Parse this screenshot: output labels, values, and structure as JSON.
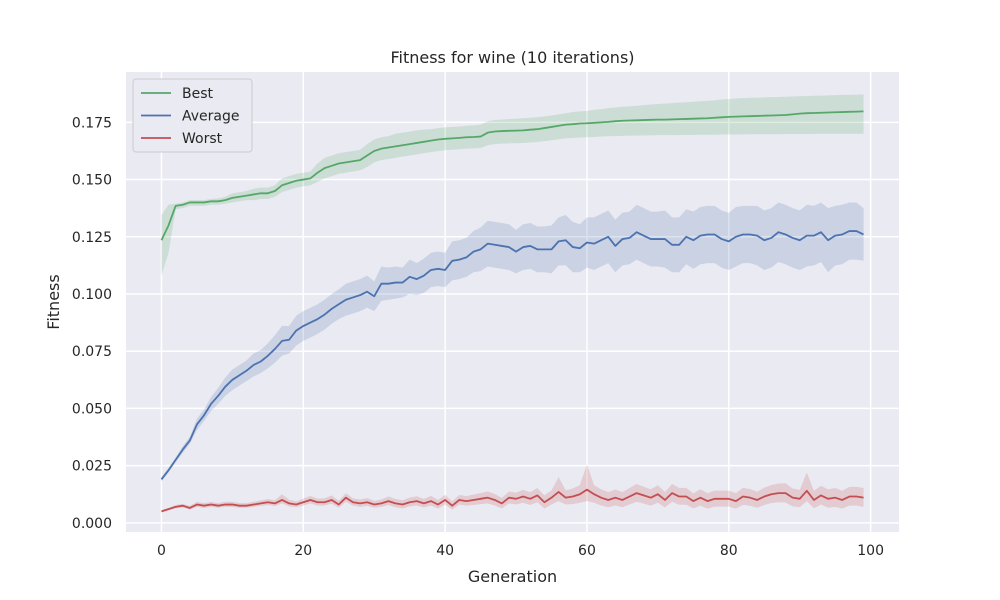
{
  "chart_data": {
    "type": "line",
    "title": "Fitness for wine (10 iterations)",
    "xlabel": "Generation",
    "ylabel": "Fitness",
    "xlim": [
      -5,
      104
    ],
    "ylim": [
      -0.004,
      0.197
    ],
    "xticks": [
      0,
      20,
      40,
      60,
      80,
      100
    ],
    "yticks": [
      0.0,
      0.025,
      0.05,
      0.075,
      0.1,
      0.125,
      0.15,
      0.175
    ],
    "ytick_labels": [
      "0.000",
      "0.025",
      "0.050",
      "0.075",
      "0.100",
      "0.125",
      "0.150",
      "0.175"
    ],
    "grid": true,
    "legend_position": "upper-left",
    "series": [
      {
        "name": "Best",
        "color": "#55a868",
        "values": [
          0.1235,
          0.13,
          0.1385,
          0.139,
          0.14,
          0.14,
          0.14,
          0.1405,
          0.1405,
          0.141,
          0.142,
          0.1425,
          0.143,
          0.1435,
          0.144,
          0.144,
          0.145,
          0.1475,
          0.1485,
          0.1495,
          0.15,
          0.1505,
          0.153,
          0.155,
          0.156,
          0.157,
          0.1575,
          0.158,
          0.1585,
          0.1605,
          0.1625,
          0.1635,
          0.164,
          0.1645,
          0.165,
          0.1655,
          0.166,
          0.1665,
          0.167,
          0.1675,
          0.1678,
          0.168,
          0.1682,
          0.1685,
          0.1686,
          0.1688,
          0.1705,
          0.171,
          0.1712,
          0.1713,
          0.1714,
          0.1715,
          0.1718,
          0.172,
          0.1725,
          0.173,
          0.1735,
          0.174,
          0.1742,
          0.1745,
          0.1746,
          0.1748,
          0.175,
          0.1752,
          0.1755,
          0.1757,
          0.1758,
          0.1759,
          0.176,
          0.1761,
          0.1762,
          0.1762,
          0.1763,
          0.1764,
          0.1765,
          0.1766,
          0.1767,
          0.1768,
          0.177,
          0.1772,
          0.1774,
          0.1775,
          0.1776,
          0.1777,
          0.1778,
          0.1779,
          0.178,
          0.1781,
          0.1782,
          0.1785,
          0.1788,
          0.179,
          0.1791,
          0.1792,
          0.1793,
          0.1794,
          0.1795,
          0.1796,
          0.1797,
          0.1798
        ],
        "lower": [
          0.108,
          0.118,
          0.137,
          0.1375,
          0.1385,
          0.1385,
          0.1385,
          0.139,
          0.139,
          0.1395,
          0.14,
          0.1405,
          0.141,
          0.141,
          0.1415,
          0.1415,
          0.1425,
          0.1445,
          0.1455,
          0.1465,
          0.147,
          0.1475,
          0.149,
          0.1505,
          0.1515,
          0.1525,
          0.153,
          0.1535,
          0.154,
          0.1555,
          0.1575,
          0.1585,
          0.159,
          0.1595,
          0.16,
          0.1605,
          0.161,
          0.1615,
          0.162,
          0.1625,
          0.1628,
          0.163,
          0.1632,
          0.1635,
          0.1636,
          0.1638,
          0.165,
          0.1655,
          0.1657,
          0.1658,
          0.1659,
          0.166,
          0.1662,
          0.1664,
          0.1668,
          0.1672,
          0.1676,
          0.168,
          0.1682,
          0.1684,
          0.1685,
          0.1686,
          0.1688,
          0.1689,
          0.169,
          0.1691,
          0.1692,
          0.1692,
          0.1693,
          0.1693,
          0.1694,
          0.1694,
          0.1694,
          0.1695,
          0.1695,
          0.1695,
          0.1696,
          0.1696,
          0.1696,
          0.1697,
          0.1697,
          0.1697,
          0.1697,
          0.1698,
          0.1698,
          0.1698,
          0.1698,
          0.1698,
          0.1699,
          0.1699,
          0.1699,
          0.1699,
          0.1699,
          0.17,
          0.17,
          0.17,
          0.17,
          0.17,
          0.17,
          0.17
        ],
        "upper": [
          0.1345,
          0.139,
          0.1395,
          0.14,
          0.141,
          0.141,
          0.141,
          0.1415,
          0.1418,
          0.1425,
          0.144,
          0.1445,
          0.145,
          0.146,
          0.1465,
          0.1465,
          0.1475,
          0.1505,
          0.1515,
          0.1525,
          0.153,
          0.1535,
          0.157,
          0.1595,
          0.1605,
          0.1615,
          0.162,
          0.1625,
          0.163,
          0.1655,
          0.1675,
          0.1685,
          0.169,
          0.17,
          0.1705,
          0.171,
          0.1715,
          0.1718,
          0.172,
          0.1725,
          0.1728,
          0.173,
          0.1732,
          0.1735,
          0.1737,
          0.174,
          0.1755,
          0.176,
          0.1762,
          0.1764,
          0.1766,
          0.1768,
          0.177,
          0.1772,
          0.1776,
          0.178,
          0.1785,
          0.179,
          0.1795,
          0.1798,
          0.18,
          0.1805,
          0.1808,
          0.1812,
          0.1815,
          0.1818,
          0.182,
          0.1822,
          0.1825,
          0.1828,
          0.183,
          0.1832,
          0.1834,
          0.1836,
          0.1838,
          0.184,
          0.1842,
          0.1844,
          0.1846,
          0.185,
          0.1852,
          0.1854,
          0.1856,
          0.1857,
          0.1858,
          0.1859,
          0.186,
          0.1861,
          0.1862,
          0.1863,
          0.1864,
          0.1865,
          0.1866,
          0.1867,
          0.1868,
          0.1869,
          0.187,
          0.187,
          0.1871,
          0.1872
        ]
      },
      {
        "name": "Average",
        "color": "#4c72b0",
        "values": [
          0.019,
          0.023,
          0.0275,
          0.032,
          0.036,
          0.043,
          0.047,
          0.052,
          0.0555,
          0.0595,
          0.0625,
          0.0645,
          0.0665,
          0.069,
          0.0705,
          0.073,
          0.076,
          0.0795,
          0.08,
          0.084,
          0.086,
          0.0875,
          0.089,
          0.091,
          0.0935,
          0.0955,
          0.0975,
          0.0985,
          0.0995,
          0.101,
          0.099,
          0.1045,
          0.1045,
          0.105,
          0.105,
          0.1075,
          0.1065,
          0.108,
          0.1105,
          0.111,
          0.1105,
          0.1145,
          0.115,
          0.116,
          0.1185,
          0.1195,
          0.122,
          0.1215,
          0.121,
          0.1205,
          0.1185,
          0.1205,
          0.121,
          0.1195,
          0.1195,
          0.1195,
          0.123,
          0.1235,
          0.1205,
          0.12,
          0.1225,
          0.122,
          0.1235,
          0.125,
          0.121,
          0.124,
          0.1245,
          0.127,
          0.1255,
          0.124,
          0.124,
          0.124,
          0.1215,
          0.1215,
          0.125,
          0.1235,
          0.1255,
          0.126,
          0.126,
          0.124,
          0.123,
          0.125,
          0.126,
          0.126,
          0.1255,
          0.1235,
          0.1245,
          0.127,
          0.126,
          0.1245,
          0.1235,
          0.1255,
          0.1255,
          0.127,
          0.1235,
          0.1255,
          0.126,
          0.1275,
          0.1275,
          0.126
        ],
        "lower": [
          0.018,
          0.022,
          0.0265,
          0.0305,
          0.0345,
          0.0405,
          0.0445,
          0.049,
          0.052,
          0.0555,
          0.058,
          0.06,
          0.062,
          0.064,
          0.0655,
          0.0675,
          0.07,
          0.073,
          0.074,
          0.0775,
          0.0795,
          0.081,
          0.0825,
          0.0845,
          0.087,
          0.089,
          0.0905,
          0.0915,
          0.0925,
          0.094,
          0.0925,
          0.097,
          0.0975,
          0.098,
          0.0985,
          0.1,
          0.0995,
          0.1005,
          0.103,
          0.1035,
          0.103,
          0.106,
          0.1065,
          0.1075,
          0.1095,
          0.11,
          0.112,
          0.1115,
          0.111,
          0.1105,
          0.109,
          0.1105,
          0.111,
          0.1095,
          0.1095,
          0.109,
          0.1125,
          0.1125,
          0.1095,
          0.1095,
          0.1115,
          0.1105,
          0.112,
          0.1135,
          0.1095,
          0.1125,
          0.113,
          0.115,
          0.1135,
          0.112,
          0.112,
          0.1115,
          0.1095,
          0.1095,
          0.113,
          0.111,
          0.113,
          0.1135,
          0.1135,
          0.1115,
          0.1105,
          0.112,
          0.1135,
          0.1135,
          0.1125,
          0.1105,
          0.1115,
          0.114,
          0.113,
          0.1115,
          0.1105,
          0.112,
          0.1125,
          0.114,
          0.1095,
          0.1125,
          0.113,
          0.115,
          0.115,
          0.1145
        ],
        "upper": [
          0.02,
          0.024,
          0.0285,
          0.0335,
          0.0375,
          0.0455,
          0.0495,
          0.055,
          0.059,
          0.0635,
          0.067,
          0.069,
          0.071,
          0.074,
          0.0755,
          0.0785,
          0.082,
          0.086,
          0.086,
          0.0905,
          0.0925,
          0.094,
          0.0955,
          0.0975,
          0.1,
          0.102,
          0.1045,
          0.1055,
          0.1065,
          0.108,
          0.1055,
          0.112,
          0.1115,
          0.112,
          0.1115,
          0.115,
          0.1135,
          0.1155,
          0.118,
          0.1185,
          0.118,
          0.123,
          0.1235,
          0.1245,
          0.1275,
          0.129,
          0.132,
          0.1315,
          0.131,
          0.1305,
          0.128,
          0.1305,
          0.131,
          0.1295,
          0.1295,
          0.13,
          0.1335,
          0.1345,
          0.1315,
          0.1305,
          0.1335,
          0.1335,
          0.135,
          0.1365,
          0.1325,
          0.1355,
          0.136,
          0.139,
          0.1375,
          0.136,
          0.136,
          0.1365,
          0.1335,
          0.1335,
          0.137,
          0.136,
          0.138,
          0.1385,
          0.1385,
          0.1365,
          0.1355,
          0.138,
          0.1385,
          0.1385,
          0.1385,
          0.1365,
          0.1375,
          0.14,
          0.139,
          0.1375,
          0.1365,
          0.139,
          0.1385,
          0.14,
          0.1375,
          0.1385,
          0.139,
          0.14,
          0.14,
          0.1375
        ]
      },
      {
        "name": "Worst",
        "color": "#c44e52",
        "values": [
          0.005,
          0.006,
          0.007,
          0.0075,
          0.0065,
          0.008,
          0.0075,
          0.008,
          0.0075,
          0.008,
          0.008,
          0.0075,
          0.0075,
          0.008,
          0.0085,
          0.009,
          0.0085,
          0.01,
          0.0085,
          0.008,
          0.009,
          0.01,
          0.009,
          0.009,
          0.01,
          0.008,
          0.011,
          0.009,
          0.0085,
          0.009,
          0.008,
          0.0085,
          0.0095,
          0.0085,
          0.008,
          0.009,
          0.0095,
          0.0085,
          0.0095,
          0.008,
          0.01,
          0.0075,
          0.01,
          0.0095,
          0.01,
          0.0105,
          0.011,
          0.01,
          0.0085,
          0.011,
          0.0105,
          0.0115,
          0.0105,
          0.012,
          0.009,
          0.011,
          0.0135,
          0.011,
          0.0115,
          0.0125,
          0.0145,
          0.0125,
          0.011,
          0.01,
          0.011,
          0.01,
          0.0115,
          0.013,
          0.012,
          0.011,
          0.0125,
          0.01,
          0.013,
          0.0115,
          0.0115,
          0.0095,
          0.011,
          0.0095,
          0.0105,
          0.0105,
          0.0105,
          0.0095,
          0.0115,
          0.011,
          0.01,
          0.0115,
          0.0125,
          0.013,
          0.013,
          0.011,
          0.0105,
          0.014,
          0.01,
          0.012,
          0.0105,
          0.011,
          0.01,
          0.0115,
          0.0115,
          0.011
        ],
        "lower": [
          0.0045,
          0.0055,
          0.0063,
          0.0068,
          0.0058,
          0.007,
          0.0065,
          0.007,
          0.0066,
          0.007,
          0.007,
          0.0066,
          0.0066,
          0.007,
          0.0074,
          0.0078,
          0.0073,
          0.0085,
          0.0072,
          0.0068,
          0.0076,
          0.0085,
          0.0076,
          0.0075,
          0.0084,
          0.0066,
          0.0092,
          0.0075,
          0.007,
          0.0074,
          0.0066,
          0.007,
          0.0078,
          0.0068,
          0.0063,
          0.0072,
          0.0076,
          0.0067,
          0.0075,
          0.0062,
          0.008,
          0.0058,
          0.008,
          0.0075,
          0.0078,
          0.0082,
          0.0085,
          0.0076,
          0.0063,
          0.0085,
          0.008,
          0.0088,
          0.0078,
          0.009,
          0.0062,
          0.008,
          0.0095,
          0.008,
          0.0082,
          0.0088,
          0.0095,
          0.0088,
          0.0076,
          0.0068,
          0.0076,
          0.0068,
          0.008,
          0.0092,
          0.0084,
          0.0075,
          0.0088,
          0.0067,
          0.0092,
          0.0079,
          0.0079,
          0.0063,
          0.0075,
          0.0062,
          0.0071,
          0.0071,
          0.0071,
          0.0062,
          0.0079,
          0.0074,
          0.0066,
          0.0078,
          0.0087,
          0.009,
          0.0089,
          0.0072,
          0.0068,
          0.0095,
          0.0063,
          0.008,
          0.0066,
          0.007,
          0.0062,
          0.0075,
          0.0075,
          0.007
        ],
        "upper": [
          0.0055,
          0.0065,
          0.0078,
          0.0083,
          0.0074,
          0.0092,
          0.0086,
          0.0091,
          0.0086,
          0.0092,
          0.0092,
          0.0086,
          0.0086,
          0.0092,
          0.0098,
          0.0104,
          0.0099,
          0.0125,
          0.0101,
          0.0094,
          0.0106,
          0.0118,
          0.0106,
          0.0107,
          0.012,
          0.0096,
          0.013,
          0.0107,
          0.0102,
          0.0108,
          0.0096,
          0.0102,
          0.0115,
          0.0104,
          0.0099,
          0.011,
          0.0116,
          0.0105,
          0.0118,
          0.01,
          0.0122,
          0.0094,
          0.0122,
          0.0117,
          0.0124,
          0.013,
          0.0137,
          0.0126,
          0.0109,
          0.0137,
          0.0132,
          0.0144,
          0.0134,
          0.0152,
          0.012,
          0.0142,
          0.02,
          0.0142,
          0.015,
          0.0165,
          0.0255,
          0.0165,
          0.0146,
          0.0134,
          0.0146,
          0.0134,
          0.0152,
          0.017,
          0.0158,
          0.0147,
          0.0164,
          0.0135,
          0.017,
          0.0153,
          0.0153,
          0.0129,
          0.0147,
          0.013,
          0.0141,
          0.0141,
          0.0141,
          0.013,
          0.0153,
          0.0148,
          0.0136,
          0.0154,
          0.0165,
          0.0172,
          0.0173,
          0.015,
          0.0144,
          0.022,
          0.014,
          0.0162,
          0.0146,
          0.0152,
          0.014,
          0.0157,
          0.0157,
          0.0152
        ]
      }
    ]
  }
}
